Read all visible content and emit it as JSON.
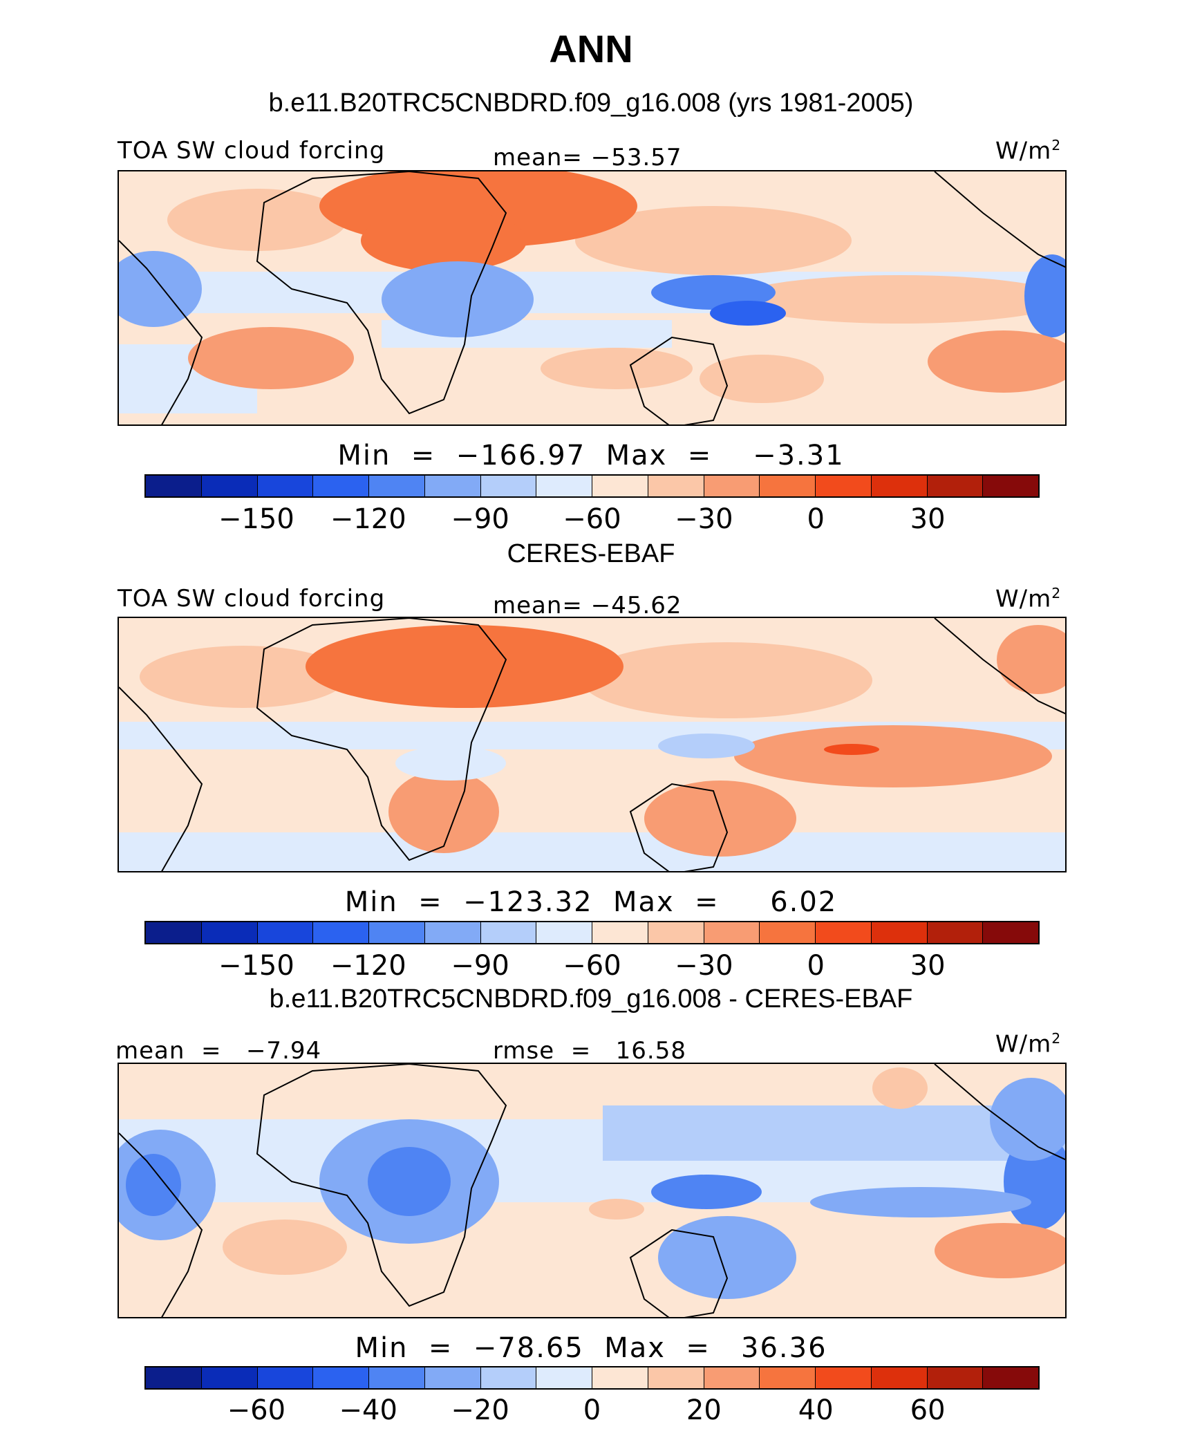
{
  "figure_title": "ANN",
  "units_prefix": "W/m",
  "units_exp": "2",
  "colors": [
    "#0b1e8c",
    "#0a2cb8",
    "#1846dc",
    "#2b62f0",
    "#4f84f3",
    "#82aaf6",
    "#b4cefa",
    "#deebfd",
    "#fde6d4",
    "#fbc7a8",
    "#f89c73",
    "#f6743e",
    "#f24b1c",
    "#dd300c",
    "#b2200b",
    "#860a0a"
  ],
  "panels": [
    {
      "title": "b.e11.B20TRC5CNBDRD.f09_g16.008 (yrs 1981-2005)",
      "left_label": "TOA SW cloud forcing",
      "center_label": "mean= −53.57",
      "minmax": "Min  =  −166.97  Max  =    −3.31",
      "ticks": [
        "−150",
        "−120",
        "−90",
        "−60",
        "−30",
        "0",
        "30"
      ]
    },
    {
      "title": "CERES-EBAF",
      "left_label": "TOA SW cloud forcing",
      "center_label": "mean= −45.62",
      "minmax": "Min  =  −123.32  Max  =     6.02",
      "ticks": [
        "−150",
        "−120",
        "−90",
        "−60",
        "−30",
        "0",
        "30"
      ]
    },
    {
      "title": "b.e11.B20TRC5CNBDRD.f09_g16.008 - CERES-EBAF",
      "left_label": "mean  =   −7.94",
      "center_label": "rmse  =   16.58",
      "minmax": "Min  =  −78.65  Max  =   36.36",
      "ticks": [
        "−60",
        "−40",
        "−20",
        "0",
        "20",
        "40",
        "60"
      ]
    }
  ],
  "chart_data": [
    {
      "type": "heatmap",
      "title": "b.e11.B20TRC5CNBDRD.f09_g16.008 (yrs 1981-2005)",
      "variable": "TOA SW cloud forcing",
      "units": "W/m2",
      "mean": -53.57,
      "min": -166.97,
      "max": -3.31,
      "colorbar_ticks": [
        -150,
        -120,
        -90,
        -60,
        -30,
        0,
        30
      ]
    },
    {
      "type": "heatmap",
      "title": "CERES-EBAF",
      "variable": "TOA SW cloud forcing",
      "units": "W/m2",
      "mean": -45.62,
      "min": -123.32,
      "max": 6.02,
      "colorbar_ticks": [
        -150,
        -120,
        -90,
        -60,
        -30,
        0,
        30
      ]
    },
    {
      "type": "heatmap",
      "title": "b.e11.B20TRC5CNBDRD.f09_g16.008 - CERES-EBAF",
      "units": "W/m2",
      "mean": -7.94,
      "rmse": 16.58,
      "min": -78.65,
      "max": 36.36,
      "colorbar_ticks": [
        -60,
        -40,
        -20,
        0,
        20,
        40,
        60
      ]
    }
  ]
}
